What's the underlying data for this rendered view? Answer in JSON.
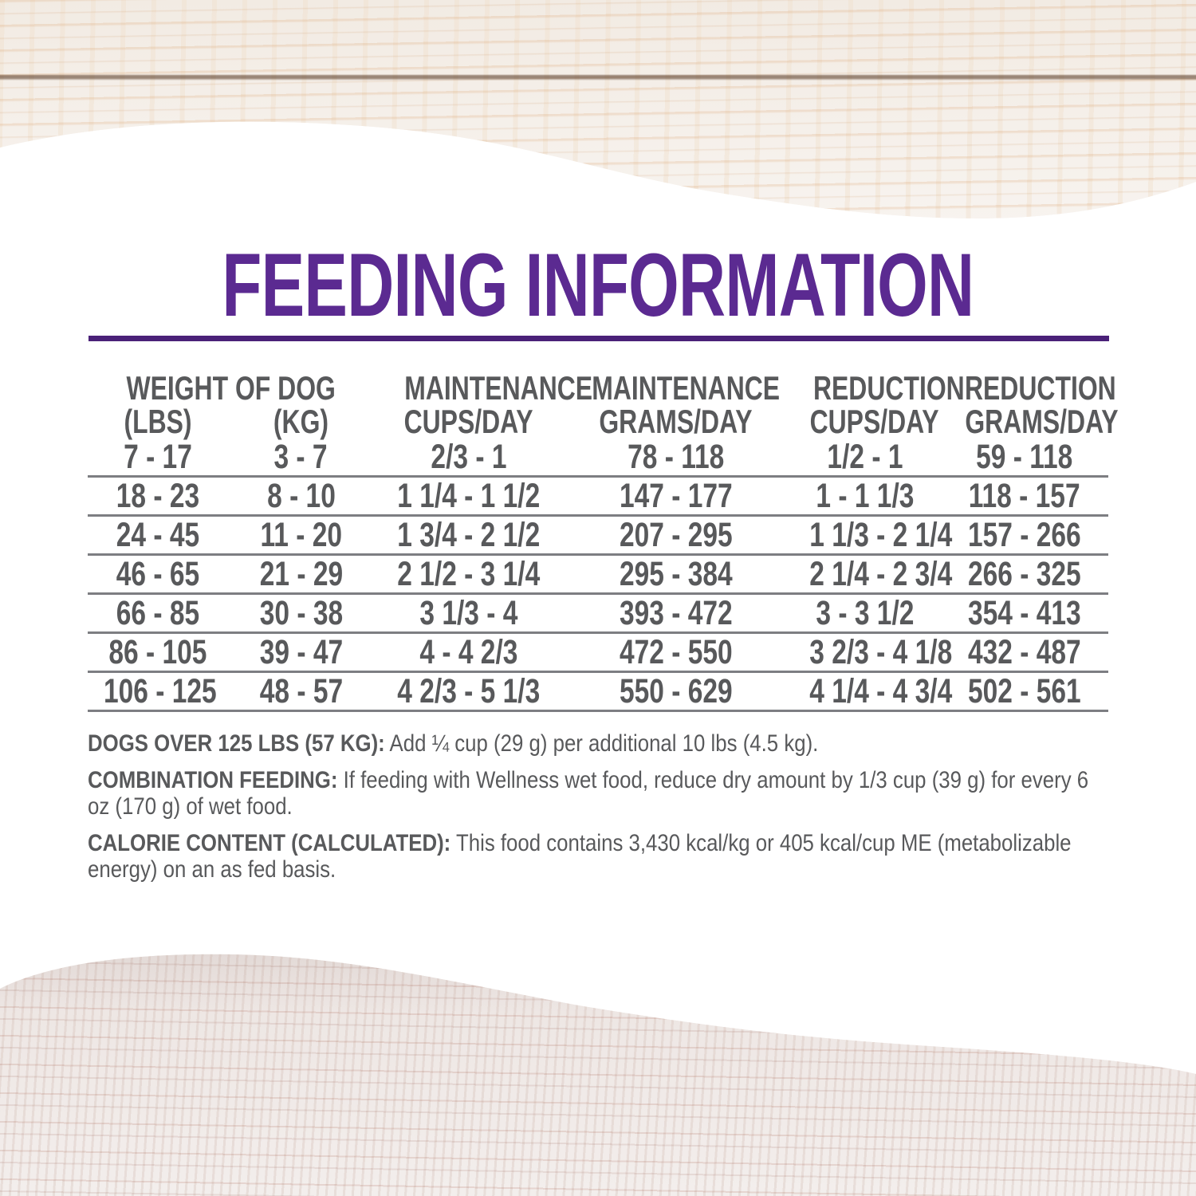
{
  "title": {
    "text": "FEEDING INFORMATION"
  },
  "colors": {
    "title_purple": "#5b2a91",
    "rule_purple": "#4a2178",
    "text_gray": "#58595b",
    "row_line_gray": "#7d7e82",
    "wood_top_base": "#f6f1ec",
    "wood_bottom_base": "#efe9e6"
  },
  "table": {
    "header_group": "WEIGHT OF DOG",
    "header_row1": [
      "MAINTENANCE",
      "MAINTENANCE",
      "REDUCTION",
      "REDUCTION"
    ],
    "header_row2": [
      "(LBS)",
      "(KG)",
      "CUPS/DAY",
      "GRAMS/DAY",
      "CUPS/DAY",
      "GRAMS/DAY"
    ],
    "rows": [
      [
        "7 - 17",
        "3 - 7",
        "2/3 - 1",
        "78 - 118",
        "1/2 - 1",
        "59 - 118"
      ],
      [
        "18 - 23",
        "8 - 10",
        "1 1/4 - 1 1/2",
        "147 - 177",
        "1 - 1 1/3",
        "118 - 157"
      ],
      [
        "24 - 45",
        "11 - 20",
        "1 3/4 - 2 1/2",
        "207 - 295",
        "1 1/3 - 2 1/4",
        "157 - 266"
      ],
      [
        "46 - 65",
        "21 - 29",
        "2 1/2 - 3 1/4",
        "295 - 384",
        "2 1/4 - 2 3/4",
        "266 - 325"
      ],
      [
        "66 - 85",
        "30 - 38",
        "3 1/3 - 4",
        "393 - 472",
        "3 - 3 1/2",
        "354 - 413"
      ],
      [
        "86 - 105",
        "39 - 47",
        "4 - 4 2/3",
        "472 - 550",
        "3 2/3 - 4 1/8",
        "432 - 487"
      ],
      [
        "106 - 125",
        "48 - 57",
        "4 2/3 - 5 1/3",
        "550 - 629",
        "4 1/4 - 4 3/4",
        "502 - 561"
      ]
    ]
  },
  "notes": [
    {
      "label": "DOGS OVER 125 LBS (57 KG):",
      "text": "Add ¼ cup (29 g) per additional 10 lbs (4.5 kg)."
    },
    {
      "label": "COMBINATION FEEDING:",
      "text": "If feeding with Wellness wet food, reduce dry amount by 1/3 cup (39 g) for every 6 oz (170 g) of wet food."
    },
    {
      "label": "CALORIE CONTENT (CALCULATED):",
      "text": "This food contains 3,430 kcal/kg or 405 kcal/cup ME (metabolizable energy) on an as fed basis."
    }
  ]
}
